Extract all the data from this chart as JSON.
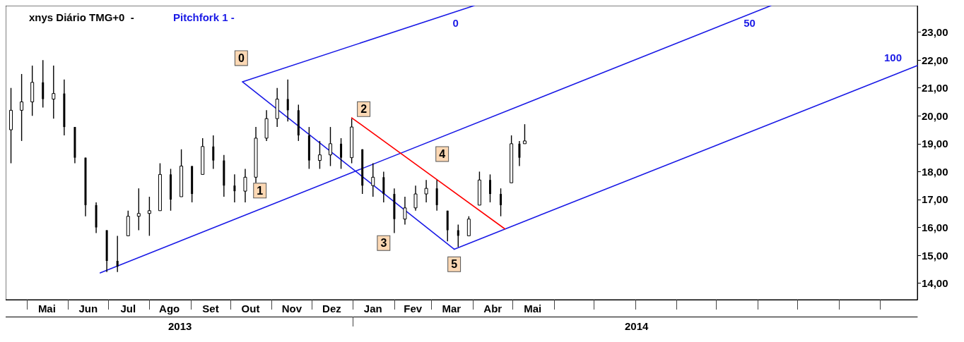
{
  "chart_data": {
    "type": "candlestick",
    "title": "xnys Diário TMG+0  -",
    "subtitle": "Pitchfork 1 -",
    "color": "#000000",
    "grid": false,
    "x": [
      "2013-04-19",
      "2013-04-27",
      "2013-05-05",
      "2013-05-13",
      "2013-05-21",
      "2013-05-29",
      "2013-06-06",
      "2013-06-14",
      "2013-06-22",
      "2013-06-30",
      "2013-07-08",
      "2013-07-16",
      "2013-07-24",
      "2013-08-01",
      "2013-08-09",
      "2013-08-17",
      "2013-08-25",
      "2013-09-02",
      "2013-09-10",
      "2013-09-18",
      "2013-09-26",
      "2013-10-04",
      "2013-10-12",
      "2013-10-20",
      "2013-10-28",
      "2013-11-05",
      "2013-11-13",
      "2013-11-21",
      "2013-11-29",
      "2013-12-07",
      "2013-12-15",
      "2013-12-23",
      "2013-12-31",
      "2014-01-08",
      "2014-01-16",
      "2014-01-24",
      "2014-02-01",
      "2014-02-09",
      "2014-02-17",
      "2014-02-25",
      "2014-03-05",
      "2014-03-13",
      "2014-03-21",
      "2014-03-29",
      "2014-04-06",
      "2014-04-14",
      "2014-04-22",
      "2014-04-30",
      "2014-05-06",
      "2014-05-10"
    ],
    "ohlc": [
      [
        19.5,
        21.0,
        18.3,
        20.2
      ],
      [
        20.2,
        21.5,
        19.1,
        20.5
      ],
      [
        20.5,
        21.8,
        20.0,
        21.2
      ],
      [
        21.2,
        22.0,
        20.3,
        20.6
      ],
      [
        20.6,
        21.8,
        19.9,
        20.8
      ],
      [
        20.8,
        21.3,
        19.3,
        19.6
      ],
      [
        19.6,
        19.6,
        18.3,
        18.5
      ],
      [
        18.5,
        18.5,
        16.4,
        16.8
      ],
      [
        16.8,
        16.9,
        15.8,
        16.0
      ],
      [
        15.9,
        15.9,
        14.4,
        14.8
      ],
      [
        14.8,
        15.7,
        14.4,
        14.6
      ],
      [
        15.7,
        16.6,
        15.7,
        16.4
      ],
      [
        16.4,
        17.4,
        15.9,
        16.5
      ],
      [
        16.5,
        17.1,
        15.7,
        16.6
      ],
      [
        16.6,
        18.3,
        16.6,
        17.9
      ],
      [
        17.9,
        18.1,
        16.6,
        17.0
      ],
      [
        17.1,
        18.8,
        17.1,
        18.2
      ],
      [
        18.2,
        18.2,
        16.9,
        17.2
      ],
      [
        17.9,
        19.2,
        17.9,
        18.9
      ],
      [
        18.9,
        19.3,
        18.1,
        18.4
      ],
      [
        18.4,
        18.6,
        17.1,
        17.5
      ],
      [
        17.5,
        17.9,
        16.9,
        17.3
      ],
      [
        17.3,
        18.1,
        16.9,
        17.8
      ],
      [
        17.8,
        19.6,
        17.6,
        19.2
      ],
      [
        19.2,
        20.2,
        19.1,
        19.9
      ],
      [
        19.9,
        21.0,
        19.6,
        20.6
      ],
      [
        20.6,
        21.3,
        19.8,
        20.2
      ],
      [
        20.2,
        20.4,
        19.1,
        19.3
      ],
      [
        19.3,
        19.6,
        18.1,
        18.4
      ],
      [
        18.4,
        19.1,
        18.1,
        18.6
      ],
      [
        18.6,
        19.6,
        18.2,
        19.0
      ],
      [
        19.0,
        19.2,
        18.1,
        18.5
      ],
      [
        18.5,
        19.9,
        18.3,
        19.6
      ],
      [
        18.8,
        18.8,
        17.2,
        17.5
      ],
      [
        17.5,
        18.3,
        17.1,
        17.8
      ],
      [
        17.8,
        18.0,
        16.9,
        17.2
      ],
      [
        17.2,
        17.4,
        15.8,
        16.3
      ],
      [
        16.3,
        17.1,
        16.1,
        16.7
      ],
      [
        16.7,
        17.5,
        16.6,
        17.2
      ],
      [
        17.2,
        17.7,
        16.9,
        17.4
      ],
      [
        17.4,
        17.7,
        16.6,
        16.8
      ],
      [
        16.6,
        16.6,
        15.5,
        15.9
      ],
      [
        15.9,
        16.1,
        15.3,
        15.7
      ],
      [
        15.7,
        16.4,
        15.7,
        16.3
      ],
      [
        16.8,
        18.0,
        16.8,
        17.7
      ],
      [
        17.7,
        17.9,
        16.9,
        17.2
      ],
      [
        17.2,
        17.4,
        16.4,
        16.8
      ],
      [
        17.6,
        19.3,
        17.6,
        19.0
      ],
      [
        19.0,
        19.1,
        18.2,
        18.5
      ],
      [
        19.0,
        19.7,
        19.0,
        19.1
      ]
    ],
    "series": [
      {
        "type": "line",
        "name": "0",
        "color": "#1a1ae6",
        "x": [
          "2013-10-10",
          "2014-04-02"
        ],
        "values": [
          21.22,
          23.95
        ]
      },
      {
        "type": "line",
        "name": "50",
        "color": "#1a1ae6",
        "x": [
          "2013-06-25",
          "2014-11-11"
        ],
        "values": [
          14.37,
          23.95
        ]
      },
      {
        "type": "line",
        "name": "100",
        "color": "#1a1ae6",
        "x": [
          "2014-03-18",
          "2015-03-01"
        ],
        "values": [
          15.22,
          21.8
        ]
      },
      {
        "type": "line",
        "color": "#1a1ae6",
        "x": [
          "2013-10-10",
          "2014-03-18"
        ],
        "values": [
          21.22,
          15.22
        ]
      },
      {
        "type": "line",
        "color": "#ff0000",
        "x": [
          "2013-12-31",
          "2014-04-25"
        ],
        "values": [
          19.93,
          15.95
        ]
      }
    ],
    "marker": "none",
    "line_style": "solid",
    "annotations": [
      {
        "text": "0",
        "x": "2013-10-09",
        "y": 22.07
      },
      {
        "text": "1",
        "x": "2013-10-23",
        "y": 17.32
      },
      {
        "text": "2",
        "x": "2014-01-09",
        "y": 20.24
      },
      {
        "text": "3",
        "x": "2014-01-24",
        "y": 15.44
      },
      {
        "text": "4",
        "x": "2014-03-09",
        "y": 18.63
      },
      {
        "text": "5",
        "x": "2014-03-18",
        "y": 14.68
      }
    ],
    "xlim": [
      "2013-04-15",
      "2015-03-01"
    ],
    "xticks": [
      {
        "value": "2013-05-01",
        "label": null
      },
      {
        "value": "2013-05-16",
        "label": "Mai"
      },
      {
        "value": "2013-06-01",
        "label": null
      },
      {
        "value": "2013-06-16",
        "label": "Jun"
      },
      {
        "value": "2013-07-01",
        "label": null
      },
      {
        "value": "2013-07-16",
        "label": "Jul"
      },
      {
        "value": "2013-08-01",
        "label": null
      },
      {
        "value": "2013-08-16",
        "label": "Ago"
      },
      {
        "value": "2013-09-01",
        "label": null
      },
      {
        "value": "2013-09-16",
        "label": "Set"
      },
      {
        "value": "2013-10-01",
        "label": null
      },
      {
        "value": "2013-10-16",
        "label": "Out"
      },
      {
        "value": "2013-11-01",
        "label": null
      },
      {
        "value": "2013-11-16",
        "label": "Nov"
      },
      {
        "value": "2013-12-01",
        "label": null
      },
      {
        "value": "2013-12-16",
        "label": "Dez"
      },
      {
        "value": "2014-01-01",
        "label": null
      },
      {
        "value": "2014-01-16",
        "label": "Jan"
      },
      {
        "value": "2014-02-01",
        "label": null
      },
      {
        "value": "2014-02-15",
        "label": "Fev"
      },
      {
        "value": "2014-03-01",
        "label": null
      },
      {
        "value": "2014-03-16",
        "label": "Mar"
      },
      {
        "value": "2014-04-01",
        "label": null
      },
      {
        "value": "2014-04-16",
        "label": "Abr"
      },
      {
        "value": "2014-05-01",
        "label": null
      },
      {
        "value": "2014-05-16",
        "label": "Mai"
      },
      {
        "value": "2014-06-01",
        "label": null
      },
      {
        "value": "2014-07-01",
        "label": null
      },
      {
        "value": "2014-08-01",
        "label": null
      },
      {
        "value": "2014-09-01",
        "label": null
      },
      {
        "value": "2014-10-01",
        "label": null
      },
      {
        "value": "2014-11-01",
        "label": null
      },
      {
        "value": "2014-12-01",
        "label": null
      },
      {
        "value": "2015-01-01",
        "label": null
      },
      {
        "value": "2015-02-01",
        "label": null
      }
    ],
    "x2lim": [
      "2013-04-15",
      "2015-03-01"
    ],
    "x2ticks": [
      {
        "value": "2013-08-24",
        "label": "2013"
      },
      {
        "value": "2014-01-01",
        "label": null
      },
      {
        "value": "2014-08-02",
        "label": "2014"
      }
    ],
    "ylim": [
      13.41,
      23.95
    ],
    "yticks": [
      {
        "value": 14,
        "label": "14,00"
      },
      {
        "value": 15,
        "label": "15,00"
      },
      {
        "value": 16,
        "label": "16,00"
      },
      {
        "value": 17,
        "label": "17,00"
      },
      {
        "value": 18,
        "label": "18,00"
      },
      {
        "value": 19,
        "label": "19,00"
      },
      {
        "value": 20,
        "label": "20,00"
      },
      {
        "value": 21,
        "label": "21,00"
      },
      {
        "value": 22,
        "label": "22,00"
      },
      {
        "value": 23,
        "label": "23,00"
      }
    ]
  }
}
